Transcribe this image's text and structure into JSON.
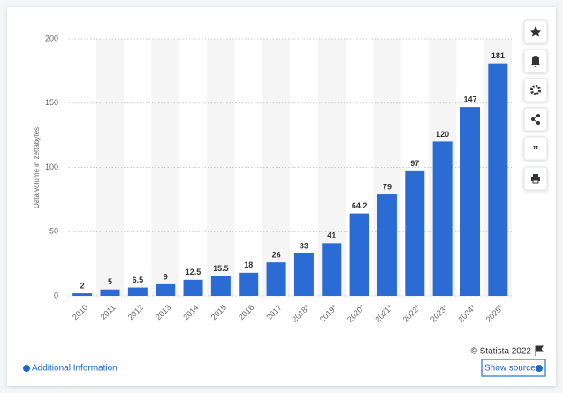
{
  "chart_data": {
    "type": "bar",
    "y_label": "Data volume in zettabytes",
    "categories": [
      "2010",
      "2011",
      "2012",
      "2013",
      "2014",
      "2015",
      "2016",
      "2017",
      "2018*",
      "2019*",
      "2020*",
      "2021*",
      "2022*",
      "2023*",
      "2024*",
      "2025*"
    ],
    "values": [
      2,
      5,
      6.5,
      9,
      12.5,
      15.5,
      18,
      26,
      33,
      41,
      64.2,
      79,
      97,
      120,
      147,
      181
    ],
    "color": "#2a6bd4",
    "ylim": [
      0,
      200
    ],
    "yticks": [
      0,
      50,
      100,
      150,
      200
    ],
    "grid": true,
    "copyright": "© Statista 2022",
    "additional_info": "Additional Information",
    "show_source": "Show source"
  }
}
